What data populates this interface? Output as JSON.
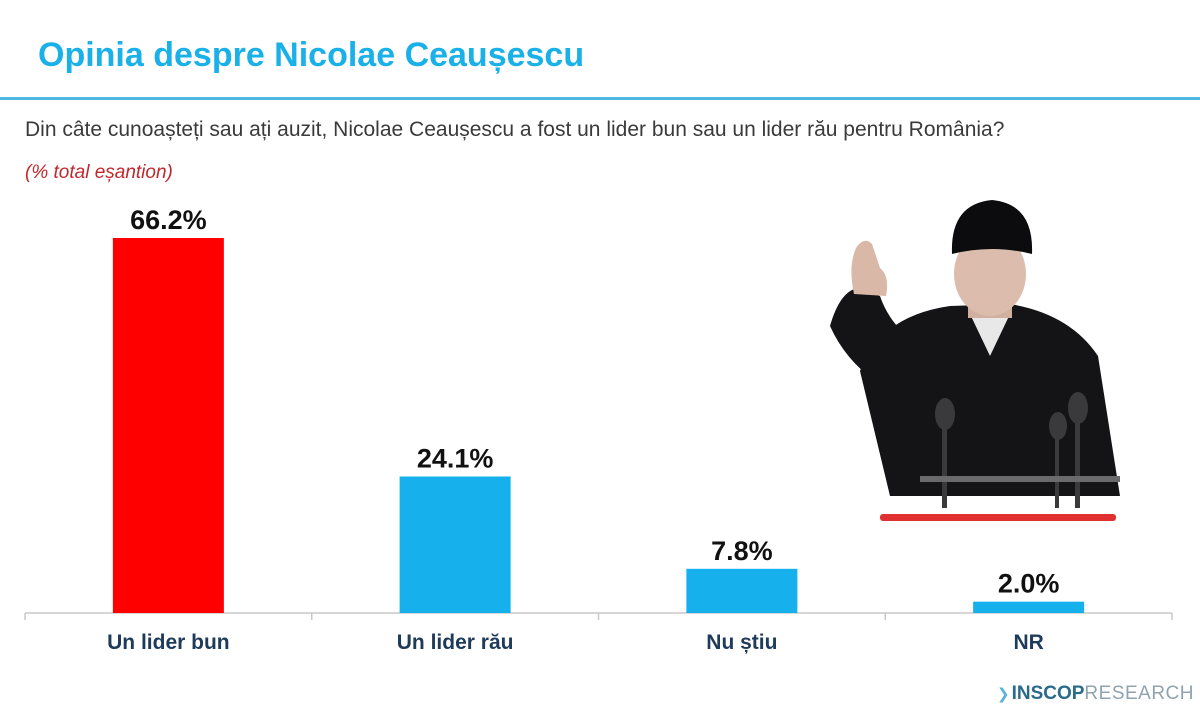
{
  "header": {
    "title": "Opinia despre Nicolae Ceaușescu",
    "question": "Din câte cunoașteți sau ați auzit, Nicolae Ceaușescu a fost un lider bun sau un lider rău pentru România?",
    "unit_note": "(% total eșantion)"
  },
  "chart_data": {
    "type": "bar",
    "categories": [
      "Un lider bun",
      "Un lider rău",
      "Nu știu",
      "NR"
    ],
    "values": [
      66.2,
      24.1,
      7.8,
      2.0
    ],
    "labels": [
      "66.2%",
      "24.1%",
      "7.8%",
      "2.0%"
    ],
    "colors": [
      "#ff0000",
      "#16b1ec",
      "#16b1ec",
      "#16b1ec"
    ],
    "ylim": [
      0,
      66.2
    ],
    "grid": false,
    "legend": "none"
  },
  "colors": {
    "title": "#1ab0e8",
    "rule": "#4fb8e0",
    "unit_note": "#c0282d",
    "category_text": "#1f3b5a",
    "podium_stripe": "#e03030"
  },
  "brand": {
    "part1": "INSCOP",
    "part2": "RESEARCH",
    "icon": "dove-icon"
  }
}
